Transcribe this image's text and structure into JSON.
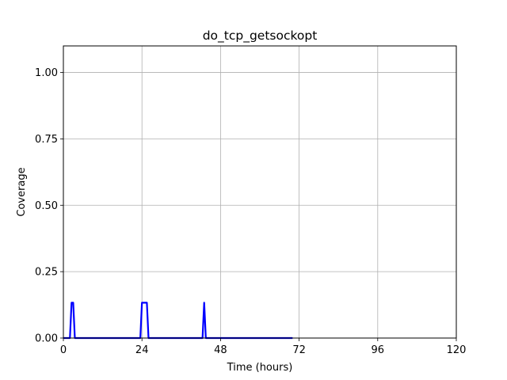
{
  "chart_data": {
    "type": "line",
    "title": "do_tcp_getsockopt",
    "xlabel": "Time (hours)",
    "ylabel": "Coverage",
    "xlim": [
      0,
      120
    ],
    "ylim": [
      0,
      1.1
    ],
    "xticks": [
      0,
      24,
      48,
      72,
      96,
      120
    ],
    "xtick_labels": [
      "0",
      "24",
      "48",
      "72",
      "96",
      "120"
    ],
    "yticks": [
      0,
      0.25,
      0.5,
      0.75,
      1.0
    ],
    "ytick_labels": [
      "0.00",
      "0.25",
      "0.50",
      "0.75",
      "1.00"
    ],
    "grid": true,
    "series": [
      {
        "color": "#0000ff",
        "x": [
          0,
          2,
          2.5,
          3,
          3.5,
          23.5,
          24,
          25.5,
          26,
          42.5,
          43,
          43.5,
          70
        ],
        "y": [
          0,
          0,
          0.133,
          0.133,
          0,
          0,
          0.133,
          0.133,
          0,
          0,
          0.133,
          0,
          0
        ]
      }
    ]
  }
}
